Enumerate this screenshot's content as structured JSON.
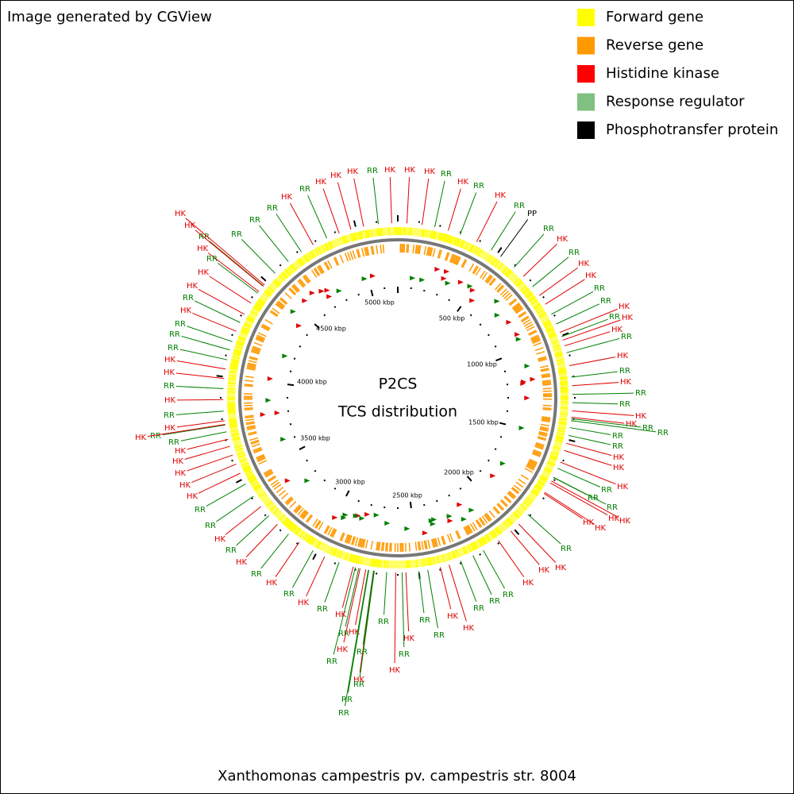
{
  "header": {
    "credit": "Image generated by CGView"
  },
  "legend": [
    {
      "label": "Forward gene",
      "color": "#ffff00"
    },
    {
      "label": "Reverse gene",
      "color": "#ff9900"
    },
    {
      "label": "Histidine kinase",
      "color": "#ff0000"
    },
    {
      "label": "Response regulator",
      "color": "#80c080"
    },
    {
      "label": "Phosphotransfer protein",
      "color": "#000000"
    }
  ],
  "center": {
    "title": "P2CS",
    "subtitle": "TCS distribution"
  },
  "scale_labels": [
    "500 kbp",
    "1000 kbp",
    "1500 kbp",
    "2000 kbp",
    "2500 kbp",
    "3000 kbp",
    "3500 kbp",
    "4000 kbp",
    "4500 kbp",
    "5000 kbp"
  ],
  "feature_colors": {
    "hk": "#e00000",
    "rr": "#008000",
    "pp": "#000000"
  },
  "features": [
    {
      "label": "HK",
      "kind": "hk"
    },
    {
      "label": "HK",
      "kind": "hk"
    },
    {
      "label": "HK",
      "kind": "hk"
    },
    {
      "label": "RR",
      "kind": "rr"
    },
    {
      "label": "HK",
      "kind": "hk"
    },
    {
      "label": "RR",
      "kind": "rr"
    },
    {
      "label": "HK",
      "kind": "hk"
    },
    {
      "label": "RR",
      "kind": "rr"
    },
    {
      "label": "PP",
      "kind": "pp"
    },
    {
      "label": "RR",
      "kind": "rr"
    },
    {
      "label": "HK",
      "kind": "hk"
    },
    {
      "label": "RR",
      "kind": "rr"
    },
    {
      "label": "HK",
      "kind": "hk"
    },
    {
      "label": "HK",
      "kind": "hk"
    },
    {
      "label": "RR",
      "kind": "rr"
    },
    {
      "label": "RR",
      "kind": "rr"
    },
    {
      "label": "HK",
      "kind": "hk"
    },
    {
      "label": "RR",
      "kind": "rr"
    },
    {
      "label": "HK",
      "kind": "hk"
    },
    {
      "label": "HK",
      "kind": "hk"
    },
    {
      "label": "RR",
      "kind": "rr"
    },
    {
      "label": "HK",
      "kind": "hk"
    },
    {
      "label": "RR",
      "kind": "rr"
    },
    {
      "label": "HK",
      "kind": "hk"
    },
    {
      "label": "RR",
      "kind": "rr"
    },
    {
      "label": "RR",
      "kind": "rr"
    },
    {
      "label": "HK",
      "kind": "hk"
    },
    {
      "label": "HK",
      "kind": "hk"
    },
    {
      "label": "RR",
      "kind": "rr"
    },
    {
      "label": "RR",
      "kind": "rr"
    },
    {
      "label": "RR",
      "kind": "rr"
    },
    {
      "label": "RR",
      "kind": "rr"
    },
    {
      "label": "HK",
      "kind": "hk"
    },
    {
      "label": "HK",
      "kind": "hk"
    },
    {
      "label": "RR",
      "kind": "rr"
    },
    {
      "label": "HK",
      "kind": "hk"
    },
    {
      "label": "RR",
      "kind": "rr"
    },
    {
      "label": "RR",
      "kind": "rr"
    },
    {
      "label": "HK",
      "kind": "hk"
    },
    {
      "label": "HK",
      "kind": "hk"
    },
    {
      "label": "HK",
      "kind": "hk"
    },
    {
      "label": "HK",
      "kind": "hk"
    },
    {
      "label": "RR",
      "kind": "rr"
    },
    {
      "label": "HK",
      "kind": "hk"
    },
    {
      "label": "HK",
      "kind": "hk"
    },
    {
      "label": "HK",
      "kind": "hk"
    },
    {
      "label": "RR",
      "kind": "rr"
    },
    {
      "label": "RR",
      "kind": "rr"
    },
    {
      "label": "RR",
      "kind": "rr"
    },
    {
      "label": "HK",
      "kind": "hk"
    },
    {
      "label": "HK",
      "kind": "hk"
    },
    {
      "label": "RR",
      "kind": "rr"
    },
    {
      "label": "RR",
      "kind": "rr"
    },
    {
      "label": "HK",
      "kind": "hk"
    },
    {
      "label": "RR",
      "kind": "rr"
    },
    {
      "label": "RR",
      "kind": "rr"
    },
    {
      "label": "HK",
      "kind": "hk"
    },
    {
      "label": "HK",
      "kind": "hk"
    },
    {
      "label": "RR",
      "kind": "rr"
    },
    {
      "label": "RR",
      "kind": "rr"
    },
    {
      "label": "RR",
      "kind": "rr"
    },
    {
      "label": "HK",
      "kind": "hk"
    },
    {
      "label": "RR",
      "kind": "rr"
    },
    {
      "label": "RR",
      "kind": "rr"
    },
    {
      "label": "HK",
      "kind": "hk"
    },
    {
      "label": "RR",
      "kind": "rr"
    },
    {
      "label": "HK",
      "kind": "hk"
    },
    {
      "label": "RR",
      "kind": "rr"
    },
    {
      "label": "HK",
      "kind": "hk"
    },
    {
      "label": "RR",
      "kind": "rr"
    },
    {
      "label": "HK",
      "kind": "hk"
    },
    {
      "label": "RR",
      "kind": "rr"
    },
    {
      "label": "HK",
      "kind": "hk"
    },
    {
      "label": "RR",
      "kind": "rr"
    },
    {
      "label": "HK",
      "kind": "hk"
    },
    {
      "label": "RR",
      "kind": "rr"
    },
    {
      "label": "RR",
      "kind": "rr"
    },
    {
      "label": "HK",
      "kind": "hk"
    },
    {
      "label": "HK",
      "kind": "hk"
    },
    {
      "label": "HK",
      "kind": "hk"
    },
    {
      "label": "HK",
      "kind": "hk"
    },
    {
      "label": "RR",
      "kind": "rr"
    },
    {
      "label": "HK",
      "kind": "hk"
    },
    {
      "label": "RR",
      "kind": "rr"
    },
    {
      "label": "HK",
      "kind": "hk"
    },
    {
      "label": "HK",
      "kind": "hk"
    },
    {
      "label": "RR",
      "kind": "rr"
    },
    {
      "label": "HK",
      "kind": "hk"
    },
    {
      "label": "RR",
      "kind": "rr"
    },
    {
      "label": "HK",
      "kind": "hk"
    },
    {
      "label": "HK",
      "kind": "hk"
    },
    {
      "label": "RR",
      "kind": "rr"
    },
    {
      "label": "RR",
      "kind": "rr"
    },
    {
      "label": "RR",
      "kind": "rr"
    },
    {
      "label": "HK",
      "kind": "hk"
    },
    {
      "label": "RR",
      "kind": "rr"
    },
    {
      "label": "HK",
      "kind": "hk"
    },
    {
      "label": "HK",
      "kind": "hk"
    },
    {
      "label": "HK",
      "kind": "hk"
    },
    {
      "label": "RR",
      "kind": "rr"
    },
    {
      "label": "RR",
      "kind": "rr"
    },
    {
      "label": "RR",
      "kind": "rr"
    },
    {
      "label": "HK",
      "kind": "hk"
    },
    {
      "label": "HK",
      "kind": "hk"
    },
    {
      "label": "RR",
      "kind": "rr"
    },
    {
      "label": "RR",
      "kind": "rr"
    },
    {
      "label": "HK",
      "kind": "hk"
    },
    {
      "label": "RR",
      "kind": "rr"
    },
    {
      "label": "HK",
      "kind": "hk"
    },
    {
      "label": "HK",
      "kind": "hk"
    },
    {
      "label": "HK",
      "kind": "hk"
    },
    {
      "label": "RR",
      "kind": "rr"
    }
  ],
  "footer": "Xanthomonas campestris pv. campestris str. 8004"
}
